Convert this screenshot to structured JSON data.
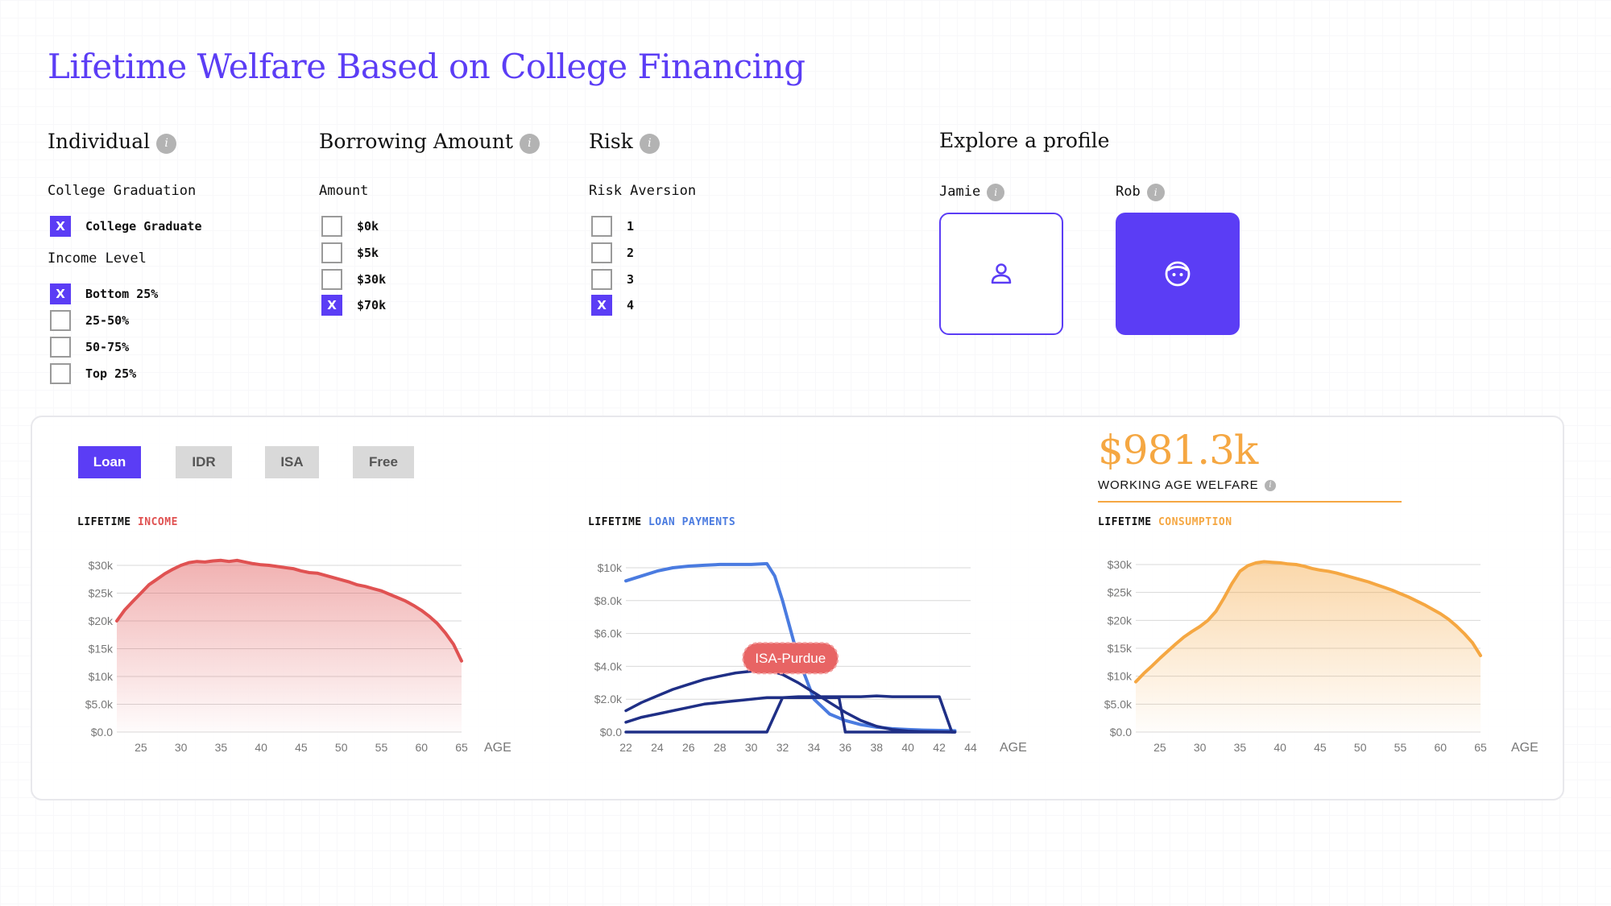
{
  "title": "Lifetime Welfare Based on College Financing",
  "info_glyph": "i",
  "individual": {
    "heading": "Individual",
    "graduation_label": "College Graduation",
    "graduation_options": [
      {
        "label": "College Graduate",
        "checked": true
      }
    ],
    "income_label": "Income Level",
    "income_options": [
      {
        "label": "Bottom 25%",
        "checked": true
      },
      {
        "label": "25-50%",
        "checked": false
      },
      {
        "label": "50-75%",
        "checked": false
      },
      {
        "label": "Top 25%",
        "checked": false
      }
    ]
  },
  "borrowing": {
    "heading": "Borrowing Amount",
    "amount_label": "Amount",
    "options": [
      {
        "label": "$0k",
        "checked": false
      },
      {
        "label": "$5k",
        "checked": false
      },
      {
        "label": "$30k",
        "checked": false
      },
      {
        "label": "$70k",
        "checked": true
      }
    ]
  },
  "risk": {
    "heading": "Risk",
    "aversion_label": "Risk Aversion",
    "options": [
      {
        "label": "1",
        "checked": false
      },
      {
        "label": "2",
        "checked": false
      },
      {
        "label": "3",
        "checked": false
      },
      {
        "label": "4",
        "checked": true
      }
    ]
  },
  "profiles": {
    "heading": "Explore a profile",
    "items": [
      {
        "name": "Jamie",
        "icon": "person-icon",
        "selected": false
      },
      {
        "name": "Rob",
        "icon": "face-icon",
        "selected": true
      }
    ]
  },
  "check_mark": "X",
  "tabs": [
    {
      "label": "Loan",
      "active": true
    },
    {
      "label": "IDR",
      "active": false
    },
    {
      "label": "ISA",
      "active": false
    },
    {
      "label": "Free",
      "active": false
    }
  ],
  "welfare": {
    "value": "$981.3k",
    "label": "WORKING AGE WELFARE"
  },
  "colors": {
    "accent": "#5b3df5",
    "income": "#e05252",
    "payments_light": "#4a7be0",
    "payments_dark": "#1f2f86",
    "consumption": "#f5a742",
    "tooltip": "#e86464"
  },
  "chart_data": [
    {
      "type": "area",
      "title_prefix": "LIFETIME",
      "title_highlight": "INCOME",
      "xlabel": "AGE",
      "xlim": [
        22,
        65
      ],
      "ylim": [
        0,
        30000
      ],
      "yticks": [
        0,
        5000,
        10000,
        15000,
        20000,
        25000,
        30000
      ],
      "ytick_labels": [
        "$0.0",
        "$5.0k",
        "$10k",
        "$15k",
        "$20k",
        "$25k",
        "$30k"
      ],
      "xticks": [
        25,
        30,
        35,
        40,
        45,
        50,
        55,
        60,
        65
      ],
      "grid": true,
      "series": [
        {
          "x": [
            22,
            23,
            24,
            25,
            26,
            27,
            28,
            29,
            30,
            31,
            32,
            33,
            34,
            35,
            36,
            37,
            38,
            39,
            40,
            41,
            42,
            43,
            44,
            45,
            46,
            47,
            48,
            49,
            50,
            51,
            52,
            53,
            54,
            55,
            56,
            57,
            58,
            59,
            60,
            61,
            62,
            63,
            64,
            65
          ],
          "values": [
            20000,
            22000,
            23500,
            25000,
            26500,
            27500,
            28500,
            29300,
            30000,
            30500,
            30700,
            30600,
            30800,
            30900,
            30700,
            30900,
            30600,
            30300,
            30100,
            30000,
            29800,
            29600,
            29400,
            29000,
            28700,
            28600,
            28200,
            27800,
            27400,
            27000,
            26500,
            26200,
            25800,
            25400,
            24800,
            24200,
            23600,
            22800,
            21900,
            20800,
            19500,
            17800,
            15800,
            12800
          ]
        }
      ]
    },
    {
      "type": "line",
      "title_prefix": "LIFETIME",
      "title_highlight": "LOAN PAYMENTS",
      "xlabel": "AGE",
      "xlim": [
        22,
        44
      ],
      "ylim": [
        0,
        10000
      ],
      "yticks": [
        0,
        2000,
        4000,
        6000,
        8000,
        10000
      ],
      "ytick_labels": [
        "$0.0",
        "$2.0k",
        "$4.0k",
        "$6.0k",
        "$8.0k",
        "$10k"
      ],
      "xticks": [
        22,
        24,
        26,
        28,
        30,
        32,
        34,
        36,
        38,
        40,
        42,
        44
      ],
      "grid": true,
      "annotation": "ISA-Purdue",
      "series": [
        {
          "style": "light",
          "x": [
            22,
            23,
            24,
            25,
            26,
            27,
            28,
            29,
            30,
            31,
            31.5,
            32,
            33,
            34,
            35,
            36,
            37,
            38,
            39,
            40,
            41,
            42,
            43
          ],
          "values": [
            9200,
            9500,
            9800,
            10000,
            10100,
            10150,
            10200,
            10200,
            10200,
            10250,
            9500,
            8000,
            4500,
            2000,
            1100,
            700,
            450,
            300,
            200,
            150,
            120,
            100,
            80
          ]
        },
        {
          "style": "dark",
          "x": [
            22,
            23,
            24,
            25,
            26,
            27,
            28,
            29,
            30,
            31,
            32,
            33,
            34,
            35,
            36,
            37,
            38,
            39,
            40,
            41,
            42,
            43
          ],
          "values": [
            1300,
            1800,
            2200,
            2600,
            2900,
            3200,
            3400,
            3600,
            3700,
            3800,
            3500,
            3000,
            2400,
            1800,
            1200,
            700,
            350,
            150,
            60,
            30,
            10,
            0
          ]
        },
        {
          "style": "dark",
          "x": [
            22,
            23,
            24,
            25,
            26,
            27,
            28,
            29,
            30,
            31,
            32,
            33,
            34,
            35,
            36,
            37,
            38,
            39,
            40,
            41,
            42,
            42.8,
            43
          ],
          "values": [
            600,
            900,
            1100,
            1300,
            1500,
            1700,
            1800,
            1900,
            2000,
            2100,
            2100,
            2150,
            2150,
            2150,
            2150,
            2150,
            2200,
            2150,
            2150,
            2150,
            2150,
            0,
            0
          ]
        },
        {
          "style": "dark",
          "x": [
            22,
            23,
            24,
            25,
            26,
            27,
            28,
            29,
            30,
            31,
            32,
            33,
            34,
            35,
            35.6,
            36,
            38,
            40,
            41.8,
            42,
            43
          ],
          "values": [
            0,
            0,
            0,
            0,
            0,
            0,
            0,
            0,
            0,
            0,
            2100,
            2100,
            2100,
            2100,
            2100,
            0,
            0,
            0,
            0,
            0,
            0
          ]
        }
      ]
    },
    {
      "type": "area",
      "title_prefix": "LIFETIME",
      "title_highlight": "CONSUMPTION",
      "xlabel": "AGE",
      "xlim": [
        22,
        65
      ],
      "ylim": [
        0,
        30000
      ],
      "yticks": [
        0,
        5000,
        10000,
        15000,
        20000,
        25000,
        30000
      ],
      "ytick_labels": [
        "$0.0",
        "$5.0k",
        "$10k",
        "$15k",
        "$20k",
        "$25k",
        "$30k"
      ],
      "xticks": [
        25,
        30,
        35,
        40,
        45,
        50,
        55,
        60,
        65
      ],
      "grid": true,
      "series": [
        {
          "x": [
            22,
            23,
            24,
            25,
            26,
            27,
            28,
            29,
            30,
            31,
            32,
            33,
            34,
            35,
            36,
            37,
            38,
            39,
            40,
            41,
            42,
            43,
            44,
            45,
            46,
            47,
            48,
            49,
            50,
            51,
            52,
            53,
            54,
            55,
            56,
            57,
            58,
            59,
            60,
            61,
            62,
            63,
            64,
            65
          ],
          "values": [
            9000,
            10500,
            11800,
            13200,
            14500,
            15800,
            17000,
            18000,
            18900,
            20000,
            21600,
            24000,
            26600,
            28800,
            29800,
            30300,
            30500,
            30400,
            30300,
            30100,
            30000,
            29700,
            29300,
            29000,
            28800,
            28500,
            28100,
            27700,
            27300,
            26900,
            26400,
            25900,
            25400,
            24800,
            24200,
            23500,
            22800,
            22000,
            21200,
            20200,
            19000,
            17600,
            16000,
            13700
          ]
        }
      ]
    }
  ]
}
